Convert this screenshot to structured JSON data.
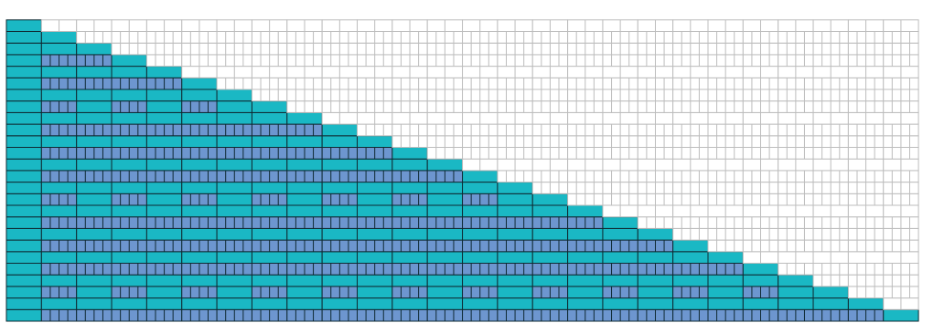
{
  "diagram": {
    "kind": "staircase-grid",
    "column_count": 26,
    "rows_per_column": 26,
    "subcells_per_cell": 4,
    "empty_row_pattern": [
      0,
      1,
      0,
      2,
      0,
      1,
      0,
      3,
      0,
      1,
      0,
      2,
      0,
      1,
      0,
      4,
      0,
      1,
      0,
      2,
      0,
      1,
      0,
      3,
      0,
      1
    ],
    "colors": {
      "solid_fill": "#1ab8c4",
      "subdivided_fill": "#6d96cf",
      "filled_stroke": "#0f2a33",
      "empty_stroke": "#bdbdbd",
      "background": "#ffffff"
    }
  }
}
